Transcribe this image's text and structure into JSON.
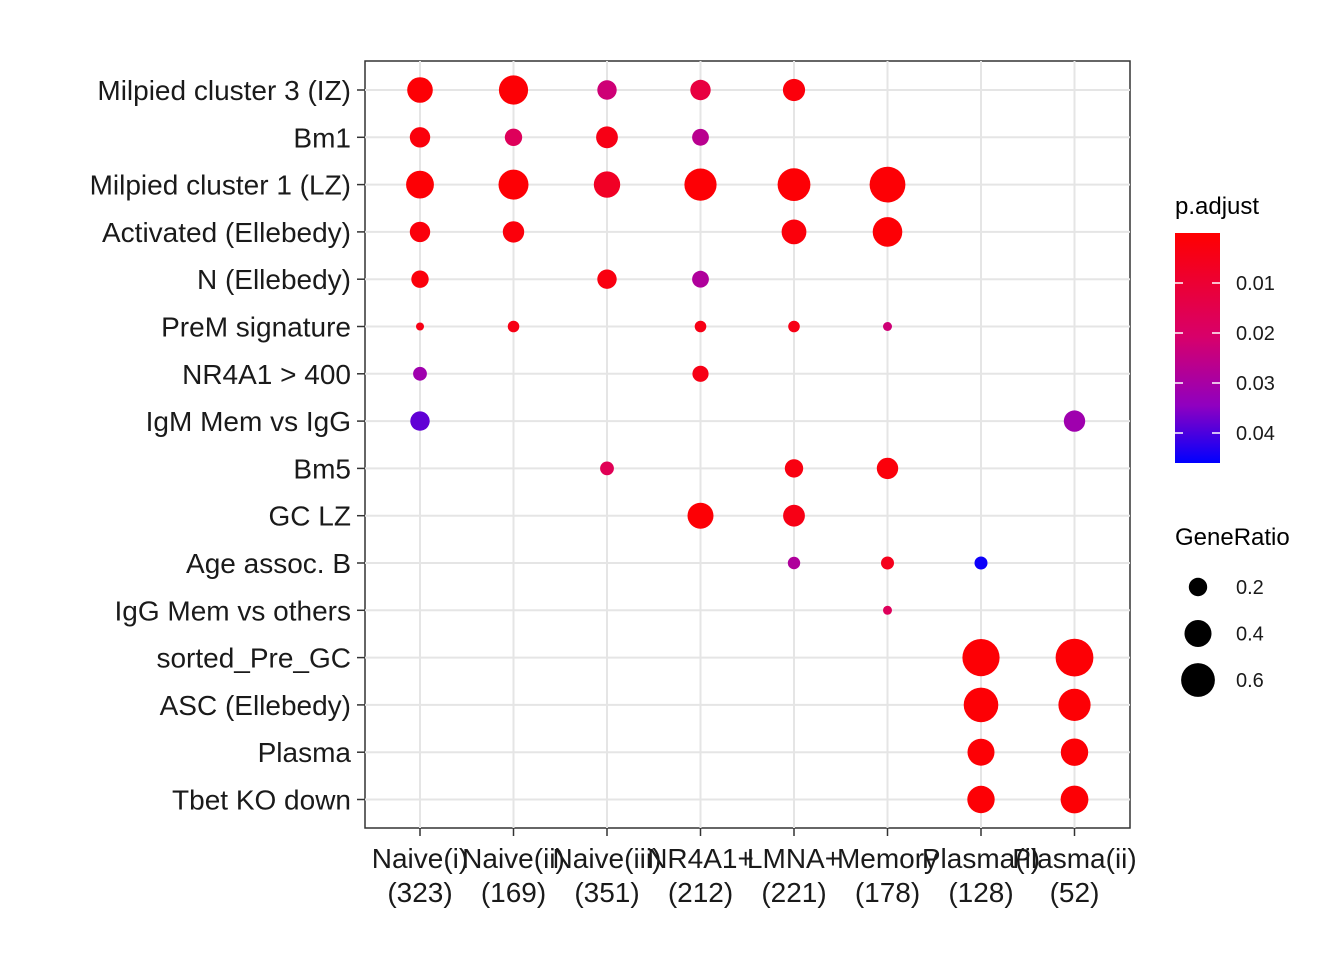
{
  "chart_data": {
    "type": "dotplot",
    "title": "",
    "xlabel": "",
    "ylabel": "",
    "x_categories": [
      "Naive(i)\n(323)",
      "Naive(ii)\n(169)",
      "Naive(iii)\n(351)",
      "NR4A1+\n(212)",
      "LMNA+\n(221)",
      "Memory\n(178)",
      "Plasma(i)\n(128)",
      "Plasma(ii)\n(52)"
    ],
    "y_categories": [
      "Milpied cluster 3 (IZ)",
      "Bm1",
      "Milpied cluster 1 (LZ)",
      "Activated (Ellebedy)",
      "N (Ellebedy)",
      "PreM signature",
      "NR4A1 > 400",
      "IgM Mem vs IgG",
      "Bm5",
      "GC LZ",
      "Age assoc. B",
      "IgG Mem vs others",
      "sorted_Pre_GC",
      "ASC (Ellebedy)",
      "Plasma",
      "Tbet KO down"
    ],
    "points": [
      {
        "x": 0,
        "y": 0,
        "gene_ratio": 0.36,
        "p_adjust": 0.001
      },
      {
        "x": 1,
        "y": 0,
        "gene_ratio": 0.46,
        "p_adjust": 0.001
      },
      {
        "x": 2,
        "y": 0,
        "gene_ratio": 0.22,
        "p_adjust": 0.022
      },
      {
        "x": 3,
        "y": 0,
        "gene_ratio": 0.24,
        "p_adjust": 0.012
      },
      {
        "x": 4,
        "y": 0,
        "gene_ratio": 0.28,
        "p_adjust": 0.002
      },
      {
        "x": 0,
        "y": 1,
        "gene_ratio": 0.24,
        "p_adjust": 0.002
      },
      {
        "x": 1,
        "y": 1,
        "gene_ratio": 0.18,
        "p_adjust": 0.017
      },
      {
        "x": 2,
        "y": 1,
        "gene_ratio": 0.27,
        "p_adjust": 0.004
      },
      {
        "x": 3,
        "y": 1,
        "gene_ratio": 0.17,
        "p_adjust": 0.026
      },
      {
        "x": 0,
        "y": 2,
        "gene_ratio": 0.42,
        "p_adjust": 0.001
      },
      {
        "x": 1,
        "y": 2,
        "gene_ratio": 0.48,
        "p_adjust": 0.001
      },
      {
        "x": 2,
        "y": 2,
        "gene_ratio": 0.38,
        "p_adjust": 0.007
      },
      {
        "x": 3,
        "y": 2,
        "gene_ratio": 0.55,
        "p_adjust": 0.001
      },
      {
        "x": 4,
        "y": 2,
        "gene_ratio": 0.57,
        "p_adjust": 0.001
      },
      {
        "x": 5,
        "y": 2,
        "gene_ratio": 0.67,
        "p_adjust": 0.001
      },
      {
        "x": 0,
        "y": 3,
        "gene_ratio": 0.24,
        "p_adjust": 0.002
      },
      {
        "x": 1,
        "y": 3,
        "gene_ratio": 0.26,
        "p_adjust": 0.002
      },
      {
        "x": 4,
        "y": 3,
        "gene_ratio": 0.34,
        "p_adjust": 0.002
      },
      {
        "x": 5,
        "y": 3,
        "gene_ratio": 0.47,
        "p_adjust": 0.001
      },
      {
        "x": 0,
        "y": 4,
        "gene_ratio": 0.18,
        "p_adjust": 0.002
      },
      {
        "x": 2,
        "y": 4,
        "gene_ratio": 0.22,
        "p_adjust": 0.003
      },
      {
        "x": 3,
        "y": 4,
        "gene_ratio": 0.17,
        "p_adjust": 0.028
      },
      {
        "x": 0,
        "y": 5,
        "gene_ratio": 0.05,
        "p_adjust": 0.004
      },
      {
        "x": 1,
        "y": 5,
        "gene_ratio": 0.09,
        "p_adjust": 0.004
      },
      {
        "x": 3,
        "y": 5,
        "gene_ratio": 0.09,
        "p_adjust": 0.004
      },
      {
        "x": 4,
        "y": 5,
        "gene_ratio": 0.09,
        "p_adjust": 0.004
      },
      {
        "x": 5,
        "y": 5,
        "gene_ratio": 0.06,
        "p_adjust": 0.022
      },
      {
        "x": 0,
        "y": 6,
        "gene_ratio": 0.12,
        "p_adjust": 0.031
      },
      {
        "x": 3,
        "y": 6,
        "gene_ratio": 0.16,
        "p_adjust": 0.004
      },
      {
        "x": 0,
        "y": 7,
        "gene_ratio": 0.22,
        "p_adjust": 0.038
      },
      {
        "x": 7,
        "y": 7,
        "gene_ratio": 0.26,
        "p_adjust": 0.031
      },
      {
        "x": 2,
        "y": 8,
        "gene_ratio": 0.12,
        "p_adjust": 0.016
      },
      {
        "x": 4,
        "y": 8,
        "gene_ratio": 0.2,
        "p_adjust": 0.003
      },
      {
        "x": 5,
        "y": 8,
        "gene_ratio": 0.26,
        "p_adjust": 0.002
      },
      {
        "x": 3,
        "y": 9,
        "gene_ratio": 0.37,
        "p_adjust": 0.001
      },
      {
        "x": 4,
        "y": 9,
        "gene_ratio": 0.27,
        "p_adjust": 0.004
      },
      {
        "x": 5,
        "y": 10,
        "gene_ratio": 0.11,
        "p_adjust": 0.005
      },
      {
        "x": 4,
        "y": 10,
        "gene_ratio": 0.1,
        "p_adjust": 0.028
      },
      {
        "x": 6,
        "y": 10,
        "gene_ratio": 0.11,
        "p_adjust": 0.045
      },
      {
        "x": 5,
        "y": 11,
        "gene_ratio": 0.06,
        "p_adjust": 0.017
      },
      {
        "x": 6,
        "y": 12,
        "gene_ratio": 0.72,
        "p_adjust": 0.001
      },
      {
        "x": 7,
        "y": 12,
        "gene_ratio": 0.74,
        "p_adjust": 0.001
      },
      {
        "x": 6,
        "y": 13,
        "gene_ratio": 0.63,
        "p_adjust": 0.001
      },
      {
        "x": 7,
        "y": 13,
        "gene_ratio": 0.55,
        "p_adjust": 0.001
      },
      {
        "x": 6,
        "y": 14,
        "gene_ratio": 0.4,
        "p_adjust": 0.001
      },
      {
        "x": 7,
        "y": 14,
        "gene_ratio": 0.41,
        "p_adjust": 0.001
      },
      {
        "x": 6,
        "y": 15,
        "gene_ratio": 0.41,
        "p_adjust": 0.001
      },
      {
        "x": 7,
        "y": 15,
        "gene_ratio": 0.42,
        "p_adjust": 0.001
      }
    ],
    "color_legend": {
      "title": "p.adjust",
      "ticks": [
        "0.01",
        "0.02",
        "0.03",
        "0.04"
      ],
      "tick_values": [
        0.01,
        0.02,
        0.03,
        0.04
      ],
      "range": [
        0.0,
        0.046
      ],
      "low_color": "#ff0000",
      "high_color": "#0000ff",
      "mid_color": "#c000a0"
    },
    "size_legend": {
      "title": "GeneRatio",
      "ticks": [
        "0.2",
        "0.4",
        "0.6"
      ],
      "tick_values": [
        0.2,
        0.4,
        0.6
      ]
    },
    "grid": true,
    "legend_position": "right"
  }
}
